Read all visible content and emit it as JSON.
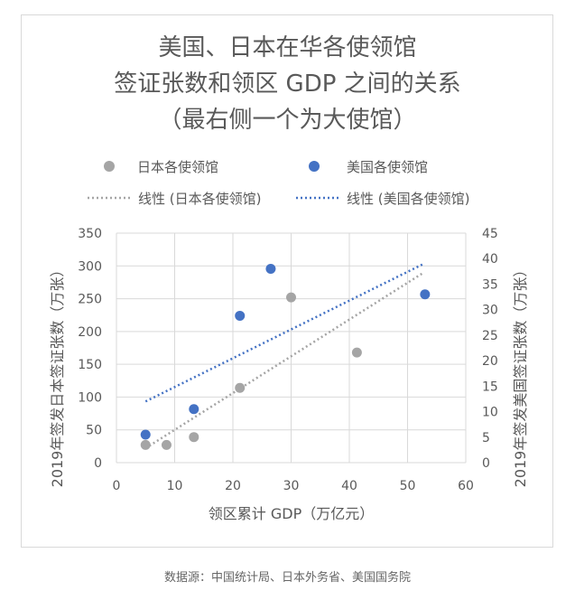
{
  "chart_data": {
    "type": "scatter",
    "title_lines": [
      "美国、日本在华各使领馆",
      "签证张数和领区 GDP 之间的关系",
      "（最右侧一个为大使馆）"
    ],
    "xlabel": "领区累计 GDP（万亿元）",
    "ylabel_left": "2019年签发日本签证张数（万张）",
    "ylabel_right": "2019年签发美国签证张数（万张）",
    "xlim": [
      0,
      60
    ],
    "ylim_left": [
      0,
      350
    ],
    "ylim_right": [
      0,
      45
    ],
    "x_ticks": [
      "0",
      "10",
      "20",
      "30",
      "40",
      "50",
      "60"
    ],
    "y_left_ticks": [
      "0",
      "50",
      "100",
      "150",
      "200",
      "250",
      "300",
      "350"
    ],
    "y_right_ticks": [
      "0",
      "5",
      "10",
      "15",
      "20",
      "25",
      "30",
      "35",
      "40",
      "45"
    ],
    "grid": true,
    "series": [
      {
        "name": "日本各使领馆",
        "axis": "left",
        "color": "#a5a5a5",
        "points": [
          [
            5,
            27
          ],
          [
            8.6,
            27
          ],
          [
            13.3,
            39
          ],
          [
            21.2,
            114
          ],
          [
            30,
            252
          ],
          [
            41.3,
            168
          ]
        ],
        "trend_name": "线性 (日本各使领馆)",
        "trend": [
          [
            5,
            22
          ],
          [
            52.8,
            290
          ]
        ]
      },
      {
        "name": "美国各使领馆",
        "axis": "right",
        "color": "#4472c4",
        "points": [
          [
            5,
            5.5
          ],
          [
            13.3,
            10.5
          ],
          [
            21.2,
            28.8
          ],
          [
            26.5,
            38
          ],
          [
            53,
            33
          ]
        ],
        "trend_name": "线性 (美国各使领馆)",
        "trend": [
          [
            5,
            12
          ],
          [
            52.8,
            39
          ]
        ]
      }
    ]
  },
  "source": "数据源：中国统计局、日本外务省、美国国务院"
}
